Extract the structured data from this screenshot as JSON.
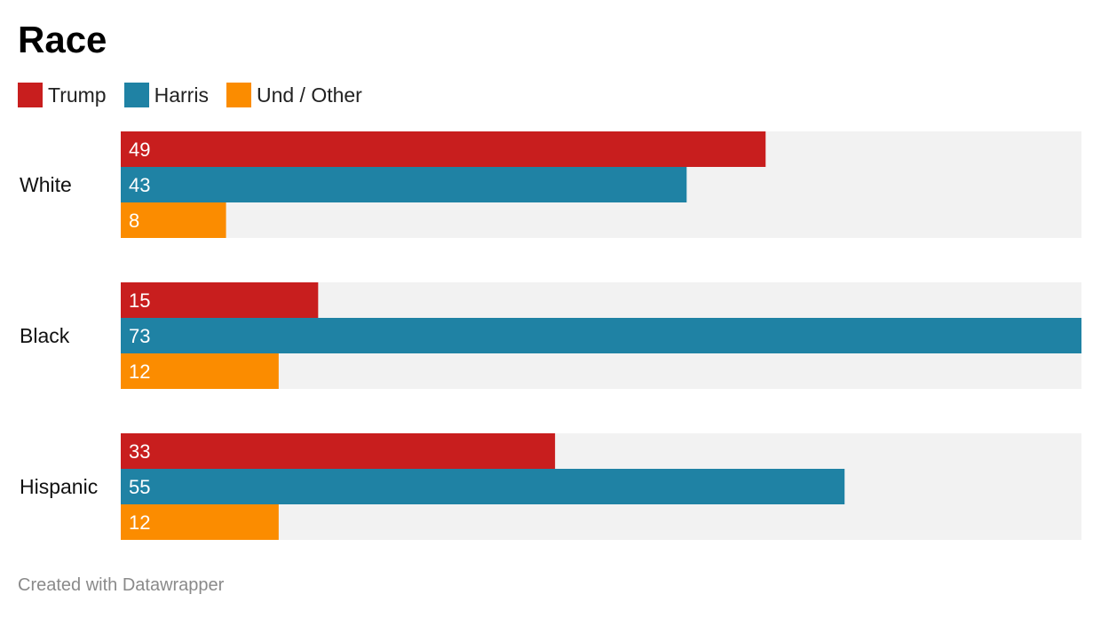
{
  "chart_data": {
    "type": "bar",
    "orientation": "horizontal",
    "title": "Race",
    "categories": [
      "White",
      "Black",
      "Hispanic"
    ],
    "series": [
      {
        "name": "Trump",
        "color": "#c81e1e",
        "values": [
          49,
          15,
          33
        ]
      },
      {
        "name": "Harris",
        "color": "#1f82a4",
        "values": [
          43,
          73,
          55
        ]
      },
      {
        "name": "Und / Other",
        "color": "#fb8c00",
        "values": [
          8,
          12,
          12
        ]
      }
    ],
    "xlim": [
      0,
      73
    ],
    "legend": "top-left",
    "grid": false,
    "track_color": "#f2f2f2"
  },
  "footer": "Created with Datawrapper"
}
